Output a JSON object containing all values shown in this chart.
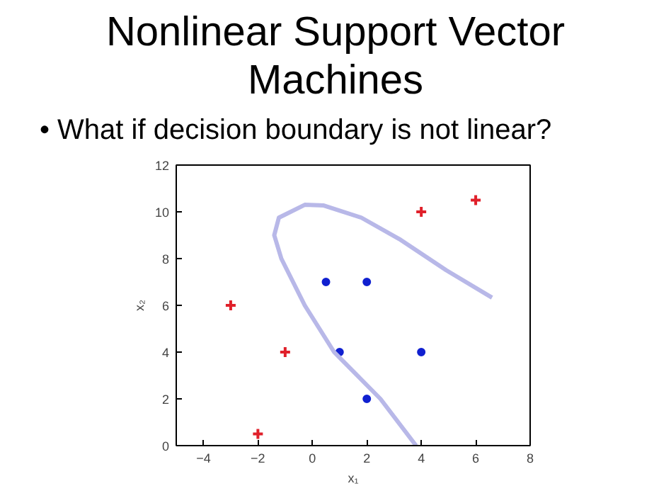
{
  "chart_data": {
    "type": "scatter",
    "title": "Nonlinear Support Vector Machines",
    "annotations": [
      "• What if decision boundary is not linear?"
    ],
    "xlabel": "x₁",
    "ylabel": "x₂",
    "xlim": [
      -5,
      8
    ],
    "ylim": [
      0,
      12
    ],
    "xticks": [
      -4,
      -2,
      0,
      2,
      4,
      6,
      8
    ],
    "yticks": [
      0,
      2,
      4,
      6,
      8,
      10,
      12
    ],
    "grid": false,
    "series": [
      {
        "marker": "cross",
        "color": "#e0202a",
        "x": [
          -3,
          -1,
          -2,
          4,
          6
        ],
        "values": [
          6,
          4,
          0.5,
          10,
          10.5
        ]
      },
      {
        "marker": "circle",
        "color": "#1020d0",
        "x": [
          0.5,
          2,
          1,
          4,
          2
        ],
        "values": [
          7,
          7,
          4,
          4,
          2
        ]
      },
      {
        "type": "line",
        "line_style": "solid",
        "color": "#b8b8e8",
        "x": [
          3.81,
          2.5,
          0.8,
          -0.28,
          -1.14,
          -1.4,
          -1.23,
          -0.28,
          0.42,
          1.8,
          3.19,
          4.92,
          6.6
        ],
        "values": [
          0,
          2,
          4,
          6,
          8,
          9,
          9.75,
          10.3,
          10.27,
          9.75,
          8.84,
          7.5,
          6.33
        ]
      }
    ]
  }
}
